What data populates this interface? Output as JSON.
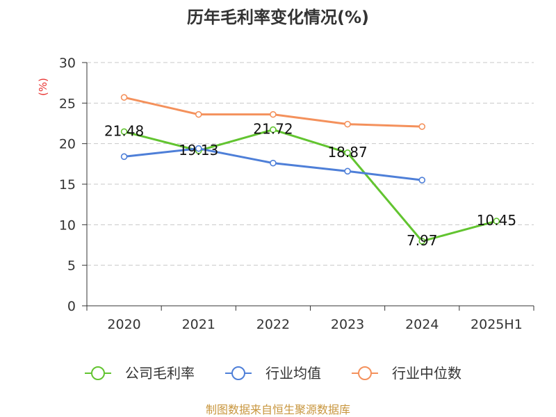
{
  "chart_data": {
    "type": "line",
    "title": "历年毛利率变化情况(%)",
    "ylabel": "(%)",
    "ylabel_color": "#e8312f",
    "categories": [
      "2020",
      "2021",
      "2022",
      "2023",
      "2024",
      "2025H1"
    ],
    "ylim": [
      0,
      30
    ],
    "yticks": [
      0,
      5,
      10,
      15,
      20,
      25,
      30
    ],
    "grid": true,
    "legend_position": "bottom",
    "series": [
      {
        "name": "公司毛利率",
        "color": "#62c430",
        "show_labels": true,
        "values": [
          21.48,
          19.13,
          21.72,
          18.87,
          7.97,
          10.45
        ]
      },
      {
        "name": "行业均值",
        "color": "#4e7fd8",
        "show_labels": false,
        "values": [
          18.4,
          19.4,
          17.6,
          16.6,
          15.5,
          null
        ]
      },
      {
        "name": "行业中位数",
        "color": "#f4915c",
        "show_labels": false,
        "values": [
          25.7,
          23.6,
          23.6,
          22.4,
          22.1,
          null
        ]
      }
    ]
  },
  "footer": {
    "source": "制图数据来自恒生聚源数据库",
    "color": "#c8963e"
  }
}
